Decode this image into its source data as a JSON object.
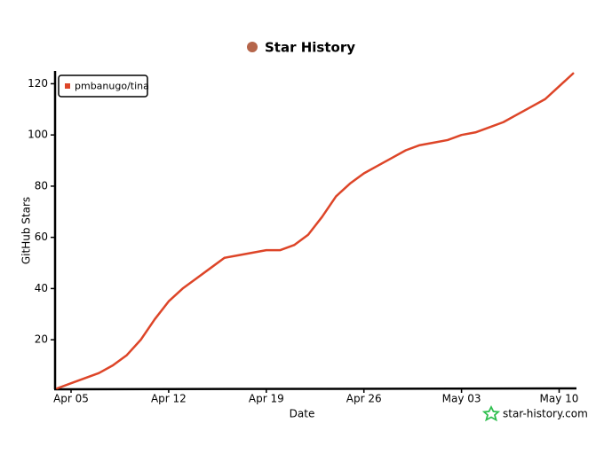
{
  "chart_data": {
    "type": "line",
    "title": "Star History",
    "x_label": "Date",
    "y_label": "GitHub Stars",
    "watermark": "star-history.com",
    "categories": [
      null,
      "Apr 05",
      null,
      null,
      null,
      null,
      null,
      null,
      "Apr 12",
      null,
      null,
      null,
      null,
      null,
      null,
      "Apr 19",
      null,
      null,
      null,
      null,
      null,
      null,
      "Apr 26",
      null,
      null,
      null,
      null,
      null,
      null,
      "May 03",
      null,
      null,
      null,
      null,
      null,
      null,
      "May 10",
      null
    ],
    "series": [
      {
        "name": "pmbanugo/tina",
        "color": "#dd4528",
        "values": [
          1,
          3,
          5,
          7,
          10,
          14,
          20,
          28,
          35,
          40,
          44,
          48,
          52,
          53,
          54,
          55,
          55,
          57,
          61,
          68,
          76,
          81,
          85,
          88,
          91,
          94,
          96,
          97,
          98,
          100,
          101,
          103,
          105,
          108,
          111,
          114,
          119,
          124
        ]
      }
    ],
    "ylim": [
      1,
      125
    ],
    "yticks": [
      20,
      40,
      60,
      80,
      100,
      120
    ],
    "legend": "top-left"
  }
}
